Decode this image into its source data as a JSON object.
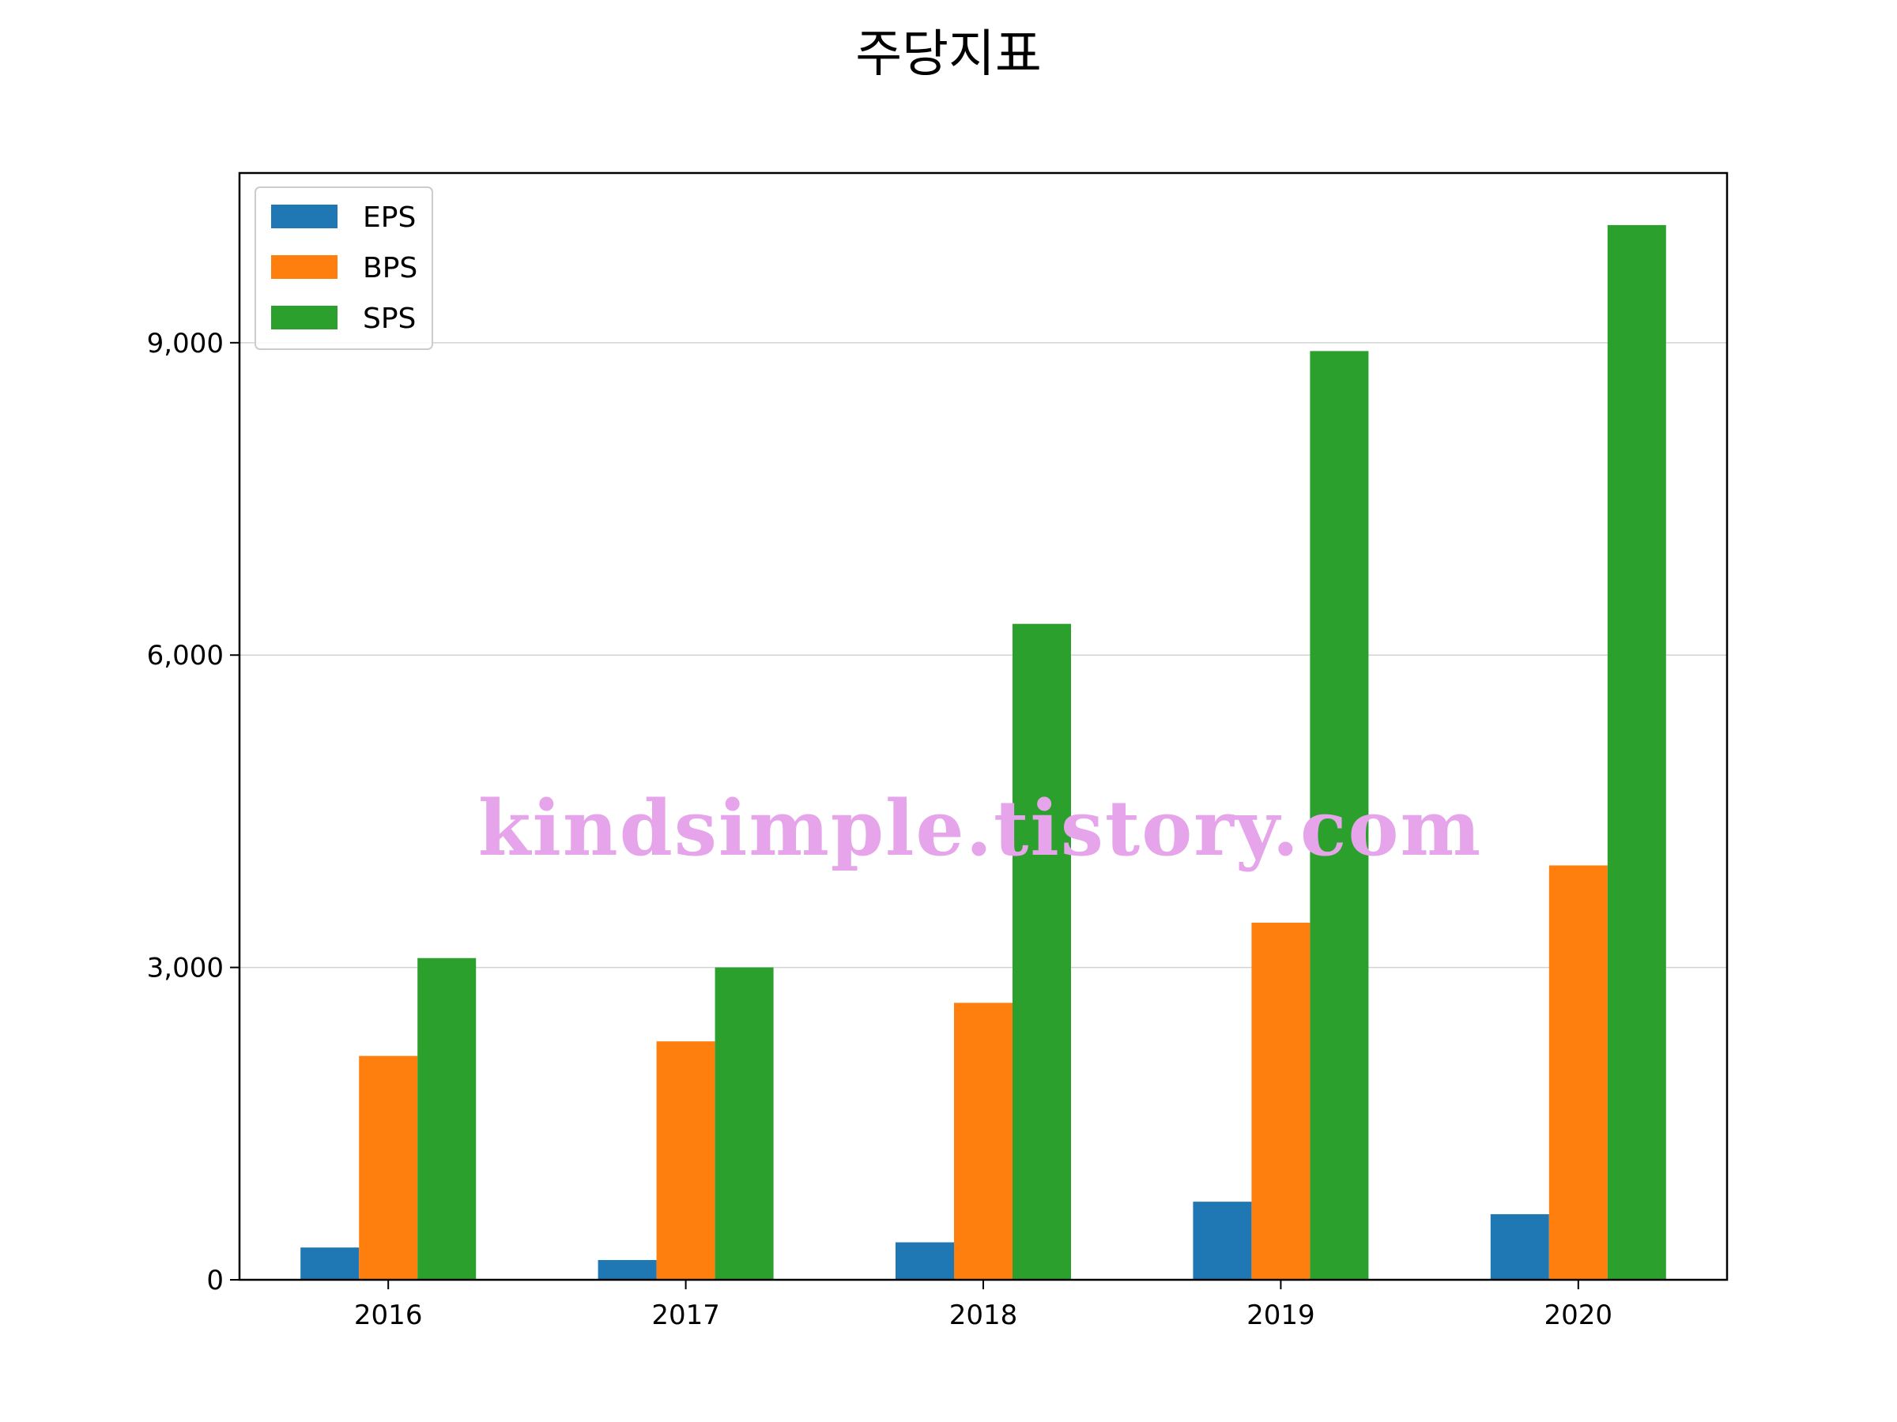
{
  "chart_data": {
    "type": "bar",
    "title": "주당지표",
    "xlabel": "",
    "ylabel": "",
    "categories": [
      "2016",
      "2017",
      "2018",
      "2019",
      "2020"
    ],
    "series": [
      {
        "name": "EPS",
        "color": "#1f77b4",
        "values": [
          310,
          190,
          360,
          750,
          630
        ]
      },
      {
        "name": "BPS",
        "color": "#ff7f0e",
        "values": [
          2150,
          2290,
          2660,
          3430,
          3980
        ]
      },
      {
        "name": "SPS",
        "color": "#2ca02c",
        "values": [
          3090,
          3000,
          6300,
          8920,
          10130
        ]
      }
    ],
    "ylim": [
      0,
      10630
    ],
    "yticks": [
      0,
      3000,
      6000,
      9000
    ],
    "ytick_labels": [
      "0",
      "3,000",
      "6,000",
      "9,000"
    ],
    "grid": "horizontal",
    "legend_position": "upper-left"
  },
  "watermark": "kindsimple.tistory.com"
}
